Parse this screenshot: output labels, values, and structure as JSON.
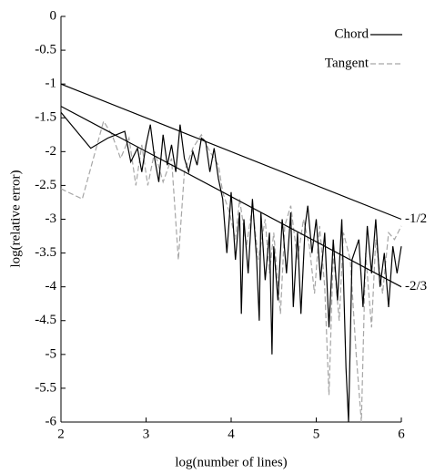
{
  "chart_data": {
    "type": "line",
    "xlabel": "log(number of lines)",
    "ylabel": "log(relative error)",
    "xlim": [
      2,
      6
    ],
    "xticks": [
      2,
      3,
      4,
      5,
      6
    ],
    "ylim": [
      -6,
      0
    ],
    "yticks": [
      0,
      -0.5,
      -1,
      -1.5,
      -2,
      -2.5,
      -3,
      -3.5,
      -4,
      -4.5,
      -5,
      -5.5,
      -6
    ],
    "legend": "upper right",
    "series": [
      {
        "name": "Chord",
        "color": "#000000",
        "dash": false,
        "x": [
          2.0,
          2.35,
          2.55,
          2.75,
          2.82,
          2.9,
          2.95,
          3.0,
          3.05,
          3.1,
          3.15,
          3.2,
          3.25,
          3.3,
          3.35,
          3.4,
          3.45,
          3.5,
          3.55,
          3.6,
          3.65,
          3.7,
          3.75,
          3.8,
          3.85,
          3.9,
          3.95,
          4.0,
          4.05,
          4.1,
          4.12,
          4.15,
          4.2,
          4.25,
          4.3,
          4.33,
          4.35,
          4.4,
          4.45,
          4.48,
          4.5,
          4.55,
          4.6,
          4.65,
          4.7,
          4.73,
          4.78,
          4.82,
          4.87,
          4.9,
          4.95,
          5.0,
          5.05,
          5.1,
          5.15,
          5.2,
          5.25,
          5.3,
          5.35,
          5.38,
          5.42,
          5.5,
          5.55,
          5.6,
          5.65,
          5.7,
          5.75,
          5.8,
          5.85,
          5.9,
          5.95,
          6.0
        ],
        "values": [
          -1.42,
          -1.95,
          -1.8,
          -1.7,
          -2.15,
          -1.95,
          -2.3,
          -1.9,
          -1.6,
          -2.1,
          -2.45,
          -1.75,
          -2.2,
          -1.9,
          -2.3,
          -1.6,
          -2.1,
          -2.3,
          -2.0,
          -2.2,
          -1.8,
          -1.85,
          -2.3,
          -1.95,
          -2.4,
          -2.7,
          -3.5,
          -2.6,
          -3.6,
          -2.9,
          -4.4,
          -3.0,
          -3.8,
          -2.7,
          -3.6,
          -4.5,
          -2.9,
          -3.9,
          -3.2,
          -5.0,
          -3.4,
          -4.2,
          -3.0,
          -3.8,
          -2.9,
          -4.3,
          -3.2,
          -4.4,
          -3.1,
          -2.8,
          -3.5,
          -3.0,
          -3.9,
          -3.2,
          -4.6,
          -3.3,
          -4.2,
          -3.0,
          -5.2,
          -6.0,
          -3.6,
          -3.3,
          -4.3,
          -3.1,
          -3.8,
          -3.0,
          -4.0,
          -3.5,
          -4.3,
          -3.4,
          -3.8,
          -3.4
        ]
      },
      {
        "name": "Tangent",
        "color": "#a6a6a6",
        "dash": true,
        "x": [
          2.0,
          2.25,
          2.5,
          2.6,
          2.7,
          2.8,
          2.88,
          2.95,
          3.02,
          3.1,
          3.2,
          3.3,
          3.38,
          3.45,
          3.55,
          3.65,
          3.75,
          3.85,
          3.9,
          3.98,
          4.05,
          4.1,
          4.18,
          4.25,
          4.32,
          4.4,
          4.45,
          4.5,
          4.58,
          4.63,
          4.7,
          4.78,
          4.85,
          4.92,
          4.98,
          5.04,
          5.1,
          5.15,
          5.2,
          5.27,
          5.32,
          5.4,
          5.47,
          5.53,
          5.58,
          5.65,
          5.7,
          5.78,
          5.85,
          5.92,
          6.0
        ],
        "values": [
          -2.55,
          -2.7,
          -1.55,
          -1.75,
          -2.1,
          -1.8,
          -2.5,
          -1.9,
          -2.5,
          -2.0,
          -2.45,
          -2.1,
          -3.6,
          -2.3,
          -1.95,
          -1.75,
          -2.0,
          -2.2,
          -2.6,
          -2.9,
          -3.3,
          -2.7,
          -3.4,
          -2.8,
          -3.6,
          -3.0,
          -3.8,
          -3.2,
          -4.4,
          -3.1,
          -2.8,
          -3.6,
          -3.0,
          -3.4,
          -4.1,
          -3.1,
          -4.0,
          -5.6,
          -3.5,
          -4.5,
          -3.2,
          -3.6,
          -5.0,
          -6.0,
          -3.5,
          -4.6,
          -3.3,
          -4.1,
          -3.2,
          -3.3,
          -3.1
        ]
      }
    ],
    "reference_lines": [
      {
        "label": "-1/2",
        "x": [
          2,
          6
        ],
        "values": [
          -1,
          -3
        ]
      },
      {
        "label": "-2/3",
        "x": [
          2,
          6
        ],
        "values": [
          -1.33,
          -4
        ]
      }
    ]
  }
}
